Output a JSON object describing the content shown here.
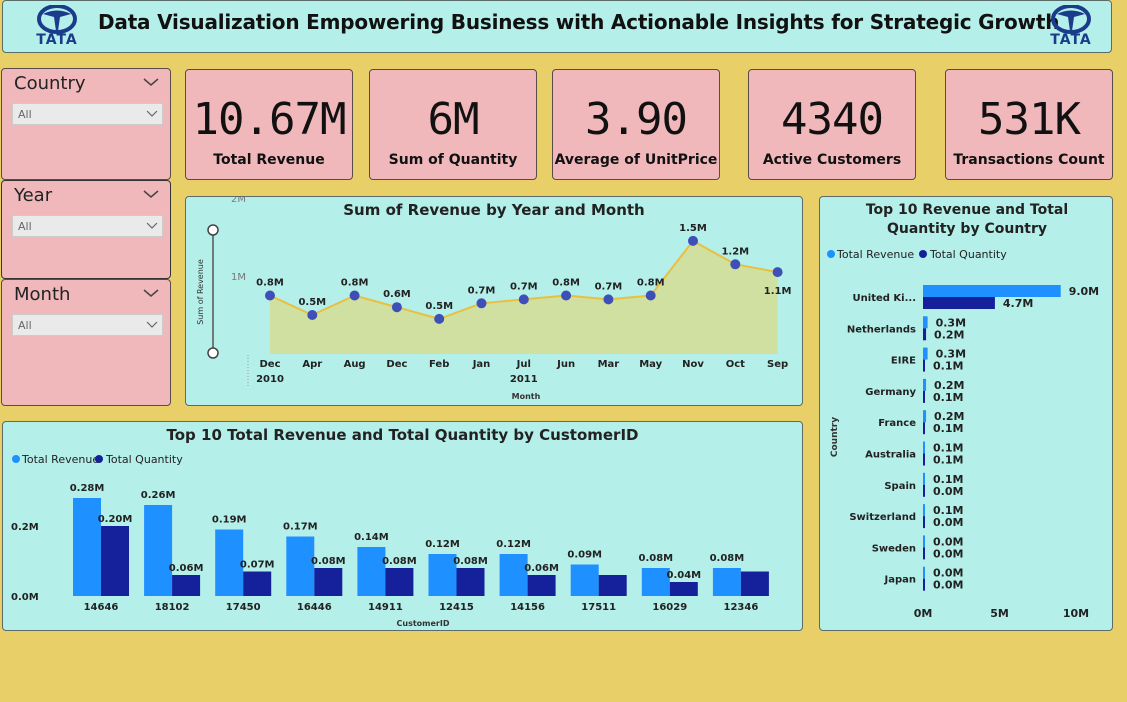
{
  "header": {
    "title": "Data Visualization Empowering Business with Actionable Insights for Strategic Growth",
    "logo_text": "TATA"
  },
  "slicers": [
    {
      "label": "Country",
      "value": "All"
    },
    {
      "label": "Year",
      "value": "All"
    },
    {
      "label": "Month",
      "value": "All"
    }
  ],
  "kpis": [
    {
      "value": "10.67M",
      "caption": "Total Revenue"
    },
    {
      "value": "6M",
      "caption": "Sum of Quantity"
    },
    {
      "value": "3.90",
      "caption": "Average of UnitPrice"
    },
    {
      "value": "4340",
      "caption": "Active Customers"
    },
    {
      "value": "531K",
      "caption": "Transactions Count"
    }
  ],
  "colors": {
    "background": "#e8cf68",
    "panel": "#b5efe9",
    "kpi": "#f0b8ba",
    "revenue": "#1e90ff",
    "quantity": "#14219a",
    "line": "#e8c040",
    "area": "#cfe0a0",
    "point": "#3f4fb8"
  },
  "chart_data": [
    {
      "type": "area",
      "title": "Sum of Revenue by Year and Month",
      "xlabel": "Month",
      "ylabel": "Sum of Revenue",
      "ytick_labels": [
        "1M",
        "2M"
      ],
      "ylim": [
        0,
        2
      ],
      "categories": [
        "Dec",
        "Apr",
        "Aug",
        "Dec",
        "Feb",
        "Jan",
        "Jul",
        "Jun",
        "Mar",
        "May",
        "Nov",
        "Oct",
        "Sep"
      ],
      "year_labels": [
        {
          "label": "2010",
          "at": 0
        },
        {
          "label": "2011",
          "at": 6
        }
      ],
      "values": [
        0.75,
        0.5,
        0.75,
        0.6,
        0.45,
        0.65,
        0.7,
        0.75,
        0.7,
        0.75,
        1.45,
        1.15,
        1.05
      ],
      "data_labels": [
        "0.8M",
        "0.5M",
        "0.8M",
        "0.6M",
        "0.5M",
        "0.7M",
        "0.7M",
        "0.8M",
        "0.7M",
        "0.8M",
        "1.5M",
        "1.2M",
        "1.1M"
      ]
    },
    {
      "type": "bar",
      "title": "Top 10 Total Revenue and Total Quantity by CustomerID",
      "xlabel": "CustomerID",
      "ytick_labels": [
        "0.0M",
        "0.2M"
      ],
      "categories": [
        "14646",
        "18102",
        "17450",
        "16446",
        "14911",
        "12415",
        "14156",
        "17511",
        "16029",
        "12346"
      ],
      "series": [
        {
          "name": "Total Revenue",
          "values": [
            0.28,
            0.26,
            0.19,
            0.17,
            0.14,
            0.12,
            0.12,
            0.09,
            0.08,
            0.08
          ],
          "labels": [
            "0.28M",
            "0.26M",
            "0.19M",
            "0.17M",
            "0.14M",
            "0.12M",
            "0.12M",
            "0.09M",
            "0.08M",
            "0.08M"
          ]
        },
        {
          "name": "Total Quantity",
          "values": [
            0.2,
            0.06,
            0.07,
            0.08,
            0.08,
            0.08,
            0.06,
            0.06,
            0.04,
            0.07
          ],
          "labels": [
            "0.20M",
            "0.06M",
            "0.07M",
            "0.08M",
            "0.08M",
            "0.08M",
            "0.06M",
            "",
            "0.04M",
            ""
          ]
        }
      ]
    },
    {
      "type": "bar",
      "orientation": "horizontal",
      "title": "Top 10 Revenue and Total Quantity by Country",
      "ylabel": "Country",
      "xtick_labels": [
        "0M",
        "5M",
        "10M"
      ],
      "xlim": [
        0,
        10
      ],
      "categories": [
        "United Ki...",
        "Netherlands",
        "EIRE",
        "Germany",
        "France",
        "Australia",
        "Spain",
        "Switzerland",
        "Sweden",
        "Japan"
      ],
      "series": [
        {
          "name": "Total Revenue",
          "values": [
            9.0,
            0.3,
            0.3,
            0.2,
            0.2,
            0.1,
            0.1,
            0.1,
            0.0,
            0.0
          ],
          "labels": [
            "9.0M",
            "0.3M",
            "0.3M",
            "0.2M",
            "0.2M",
            "0.1M",
            "0.1M",
            "0.1M",
            "0.0M",
            "0.0M"
          ]
        },
        {
          "name": "Total Quantity",
          "values": [
            4.7,
            0.2,
            0.1,
            0.1,
            0.1,
            0.1,
            0.0,
            0.0,
            0.0,
            0.0
          ],
          "labels": [
            "4.7M",
            "0.2M",
            "0.1M",
            "0.1M",
            "0.1M",
            "0.1M",
            "0.0M",
            "0.0M",
            "0.0M",
            "0.0M"
          ]
        }
      ]
    }
  ]
}
